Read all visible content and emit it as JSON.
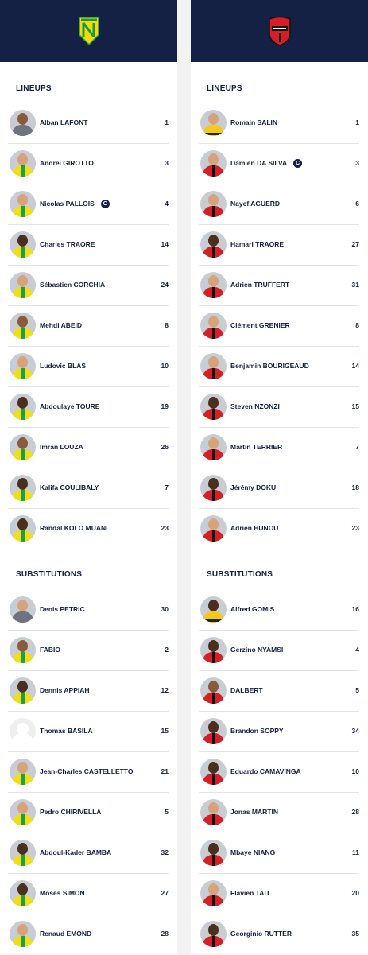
{
  "home": {
    "club": "FC NANTES",
    "crest_colors": {
      "primary": "#f5d90a",
      "secondary": "#169b48"
    },
    "lineups_title": "LINEUPS",
    "substitutions_title": "SUBSTITUTIONS",
    "lineup": [
      {
        "name": "Alban LAFONT",
        "number": "1",
        "captain": false,
        "kit": "gk-grey",
        "skin": "skin-b"
      },
      {
        "name": "Andrei GIROTTO",
        "number": "3",
        "captain": false,
        "kit": "nantes",
        "skin": "skin-a"
      },
      {
        "name": "Nicolas PALLOIS",
        "number": "4",
        "captain": true,
        "kit": "nantes",
        "skin": "skin-a"
      },
      {
        "name": "Charles TRAORE",
        "number": "14",
        "captain": false,
        "kit": "nantes",
        "skin": "skin-c"
      },
      {
        "name": "Sébastien CORCHIA",
        "number": "24",
        "captain": false,
        "kit": "nantes",
        "skin": "skin-a"
      },
      {
        "name": "Mehdi ABEID",
        "number": "8",
        "captain": false,
        "kit": "nantes",
        "skin": "skin-b"
      },
      {
        "name": "Ludovic BLAS",
        "number": "10",
        "captain": false,
        "kit": "nantes",
        "skin": "skin-a"
      },
      {
        "name": "Abdoulaye TOURE",
        "number": "19",
        "captain": false,
        "kit": "nantes",
        "skin": "skin-c"
      },
      {
        "name": "Imran LOUZA",
        "number": "26",
        "captain": false,
        "kit": "nantes",
        "skin": "skin-b"
      },
      {
        "name": "Kalifa COULIBALY",
        "number": "7",
        "captain": false,
        "kit": "nantes",
        "skin": "skin-c"
      },
      {
        "name": "Randal KOLO MUANI",
        "number": "23",
        "captain": false,
        "kit": "nantes",
        "skin": "skin-c"
      }
    ],
    "subs": [
      {
        "name": "Denis PETRIC",
        "number": "30",
        "kit": "gk-grey",
        "skin": "skin-a"
      },
      {
        "name": "FABIO",
        "number": "2",
        "kit": "nantes",
        "skin": "skin-b"
      },
      {
        "name": "Dennis APPIAH",
        "number": "12",
        "kit": "nantes",
        "skin": "skin-c"
      },
      {
        "name": "Thomas BASILA",
        "number": "15",
        "kit": "blank",
        "skin": ""
      },
      {
        "name": "Jean-Charles CASTELLETTO",
        "number": "21",
        "kit": "nantes",
        "skin": "skin-a"
      },
      {
        "name": "Pedro CHIRIVELLA",
        "number": "5",
        "kit": "nantes",
        "skin": "skin-a"
      },
      {
        "name": "Abdoul-Kader BAMBA",
        "number": "32",
        "kit": "nantes",
        "skin": "skin-c"
      },
      {
        "name": "Moses SIMON",
        "number": "27",
        "kit": "nantes",
        "skin": "skin-c"
      },
      {
        "name": "Renaud EMOND",
        "number": "28",
        "kit": "nantes",
        "skin": "skin-a"
      }
    ]
  },
  "away": {
    "club": "STADE RENNAIS",
    "crest_colors": {
      "primary": "#d41f26",
      "secondary": "#111111"
    },
    "lineups_title": "LINEUPS",
    "substitutions_title": "SUBSTITUTIONS",
    "lineup": [
      {
        "name": "Romain SALIN",
        "number": "1",
        "captain": false,
        "kit": "gk-yellow",
        "skin": "skin-a"
      },
      {
        "name": "Damien DA SILVA",
        "number": "3",
        "captain": true,
        "kit": "rennes",
        "skin": "skin-a"
      },
      {
        "name": "Nayef AGUERD",
        "number": "6",
        "captain": false,
        "kit": "rennes",
        "skin": "skin-a"
      },
      {
        "name": "Hamari TRAORE",
        "number": "27",
        "captain": false,
        "kit": "rennes",
        "skin": "skin-c"
      },
      {
        "name": "Adrien TRUFFERT",
        "number": "31",
        "captain": false,
        "kit": "rennes",
        "skin": "skin-a"
      },
      {
        "name": "Clément GRENIER",
        "number": "8",
        "captain": false,
        "kit": "rennes",
        "skin": "skin-a"
      },
      {
        "name": "Benjamin BOURIGEAUD",
        "number": "14",
        "captain": false,
        "kit": "rennes",
        "skin": "skin-a"
      },
      {
        "name": "Steven NZONZI",
        "number": "15",
        "captain": false,
        "kit": "rennes",
        "skin": "skin-c"
      },
      {
        "name": "Martin TERRIER",
        "number": "7",
        "captain": false,
        "kit": "rennes",
        "skin": "skin-a"
      },
      {
        "name": "Jérémy DOKU",
        "number": "18",
        "captain": false,
        "kit": "rennes",
        "skin": "skin-c"
      },
      {
        "name": "Adrien HUNOU",
        "number": "23",
        "captain": false,
        "kit": "rennes",
        "skin": "skin-a"
      }
    ],
    "subs": [
      {
        "name": "Alfred GOMIS",
        "number": "16",
        "kit": "gk-yellow",
        "skin": "skin-c"
      },
      {
        "name": "Gerzino NYAMSI",
        "number": "4",
        "kit": "rennes",
        "skin": "skin-c"
      },
      {
        "name": "DALBERT",
        "number": "5",
        "kit": "rennes",
        "skin": "skin-b"
      },
      {
        "name": "Brandon SOPPY",
        "number": "34",
        "kit": "rennes",
        "skin": "skin-c"
      },
      {
        "name": "Eduardo CAMAVINGA",
        "number": "10",
        "kit": "rennes",
        "skin": "skin-c"
      },
      {
        "name": "Jonas MARTIN",
        "number": "28",
        "kit": "rennes",
        "skin": "skin-a"
      },
      {
        "name": "Mbaye NIANG",
        "number": "11",
        "kit": "rennes",
        "skin": "skin-c"
      },
      {
        "name": "Flavien TAIT",
        "number": "20",
        "kit": "rennes",
        "skin": "skin-a"
      },
      {
        "name": "Georginio RUTTER",
        "number": "35",
        "kit": "rennes",
        "skin": "skin-c"
      }
    ]
  },
  "captain_badge": "C"
}
